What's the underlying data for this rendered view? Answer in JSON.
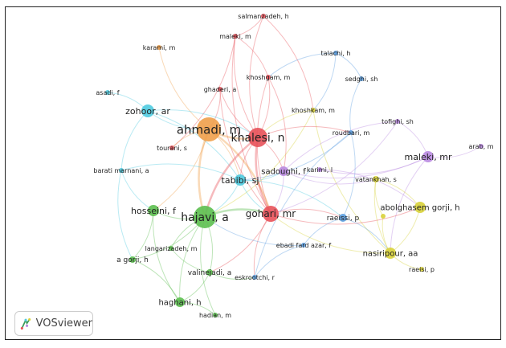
{
  "clusters": {
    "red": "#e8525a",
    "green": "#5cbf4f",
    "cyan": "#4fcbe0",
    "orange": "#f0a04b",
    "purple": "#b98ae0",
    "yellow": "#d8d23a",
    "blue": "#5c9ee0"
  },
  "nodes": [
    {
      "id": "salmanzadeh",
      "label": "salmanzadeh, h",
      "cluster": "red"
    },
    {
      "id": "maleki_m",
      "label": "maleki, m",
      "cluster": "red"
    },
    {
      "id": "karami",
      "label": "karami, m",
      "cluster": "orange"
    },
    {
      "id": "talachi",
      "label": "talachi, h",
      "cluster": "blue"
    },
    {
      "id": "khoshgam",
      "label": "khoshgam, m",
      "cluster": "red"
    },
    {
      "id": "sedghi",
      "label": "sedghi, sh",
      "cluster": "blue"
    },
    {
      "id": "ghaderi",
      "label": "ghaderi, a",
      "cluster": "red"
    },
    {
      "id": "asadi",
      "label": "asadi, f",
      "cluster": "cyan"
    },
    {
      "id": "zohoor",
      "label": "zohoor, ar",
      "cluster": "cyan"
    },
    {
      "id": "khoshkam",
      "label": "khoshkam, m",
      "cluster": "yellow"
    },
    {
      "id": "tofighi",
      "label": "tofighi, sh",
      "cluster": "purple"
    },
    {
      "id": "ahmadi",
      "label": "ahmadi, m",
      "cluster": "orange"
    },
    {
      "id": "khalesi",
      "label": "khalesi, n",
      "cluster": "red"
    },
    {
      "id": "roudbari",
      "label": "roudbari, m",
      "cluster": "blue"
    },
    {
      "id": "maleki_mr",
      "label": "maleki, mr",
      "cluster": "purple"
    },
    {
      "id": "arab",
      "label": "arab, m",
      "cluster": "purple"
    },
    {
      "id": "tourani",
      "label": "tourani, s",
      "cluster": "red"
    },
    {
      "id": "barati",
      "label": "barati marnani, a",
      "cluster": "cyan"
    },
    {
      "id": "tabibi",
      "label": "tabibi, sj",
      "cluster": "cyan"
    },
    {
      "id": "sadoughi",
      "label": "sadoughi, f",
      "cluster": "purple"
    },
    {
      "id": "karimi",
      "label": "karimi, l",
      "cluster": "purple"
    },
    {
      "id": "vatankhah",
      "label": "vatankhah, s",
      "cluster": "yellow"
    },
    {
      "id": "hosseini",
      "label": "hosseini, f",
      "cluster": "green"
    },
    {
      "id": "hajavi",
      "label": "hajavi, a",
      "cluster": "green"
    },
    {
      "id": "gohari",
      "label": "gohari, mr",
      "cluster": "red"
    },
    {
      "id": "abolghasem",
      "label": "abolghasem gorji, h",
      "cluster": "yellow"
    },
    {
      "id": "raeissi",
      "label": "raeissi, p",
      "cluster": "blue"
    },
    {
      "id": "unlabeled_y",
      "label": "",
      "cluster": "yellow"
    },
    {
      "id": "langarizadeh",
      "label": "langarizadeh, m",
      "cluster": "green"
    },
    {
      "id": "ebadi",
      "label": "ebadi fard azar, f",
      "cluster": "blue"
    },
    {
      "id": "nasiripour",
      "label": "nasiripour, aa",
      "cluster": "yellow"
    },
    {
      "id": "agorji",
      "label": "a gorji, h",
      "cluster": "green"
    },
    {
      "id": "raeisi",
      "label": "raeisi, p",
      "cluster": "yellow"
    },
    {
      "id": "valinejadi",
      "label": "valinejadi, a",
      "cluster": "green"
    },
    {
      "id": "eskrootchi",
      "label": "eskrootchi, r",
      "cluster": "blue"
    },
    {
      "id": "haghani",
      "label": "haghani, h",
      "cluster": "green"
    },
    {
      "id": "hadian",
      "label": "hadian, m",
      "cluster": "green"
    }
  ],
  "links": [
    [
      "salmanzadeh",
      "maleki_m"
    ],
    [
      "salmanzadeh",
      "khalesi"
    ],
    [
      "salmanzadeh",
      "khoshkam"
    ],
    [
      "maleki_m",
      "khalesi"
    ],
    [
      "maleki_m",
      "tourani"
    ],
    [
      "maleki_m",
      "gohari"
    ],
    [
      "maleki_m",
      "khoshgam"
    ],
    [
      "karami",
      "ahmadi"
    ],
    [
      "talachi",
      "sedghi"
    ],
    [
      "talachi",
      "khoshgam"
    ],
    [
      "talachi",
      "khoshkam"
    ],
    [
      "sedghi",
      "roudbari"
    ],
    [
      "khoshgam",
      "khalesi"
    ],
    [
      "khoshgam",
      "gohari"
    ],
    [
      "khoshgam",
      "sadoughi"
    ],
    [
      "ghaderi",
      "khalesi"
    ],
    [
      "ghaderi",
      "ahmadi"
    ],
    [
      "ghaderi",
      "gohari"
    ],
    [
      "asadi",
      "zohoor"
    ],
    [
      "zohoor",
      "barati"
    ],
    [
      "zohoor",
      "tabibi"
    ],
    [
      "zohoor",
      "ahmadi"
    ],
    [
      "zohoor",
      "khalesi"
    ],
    [
      "khoshkam",
      "khalesi"
    ],
    [
      "khoshkam",
      "hajavi"
    ],
    [
      "khoshkam",
      "nasiripour"
    ],
    [
      "tofighi",
      "maleki_mr"
    ],
    [
      "tofighi",
      "sadoughi"
    ],
    [
      "tofighi",
      "gohari"
    ],
    [
      "ahmadi",
      "khalesi"
    ],
    [
      "ahmadi",
      "gohari"
    ],
    [
      "ahmadi",
      "hajavi"
    ],
    [
      "ahmadi",
      "tabibi"
    ],
    [
      "ahmadi",
      "tourani"
    ],
    [
      "ahmadi",
      "hosseini"
    ],
    [
      "khalesi",
      "gohari"
    ],
    [
      "khalesi",
      "sadoughi"
    ],
    [
      "khalesi",
      "tabibi"
    ],
    [
      "khalesi",
      "roudbari"
    ],
    [
      "khalesi",
      "hajavi"
    ],
    [
      "roudbari",
      "raeissi"
    ],
    [
      "roudbari",
      "eskrootchi"
    ],
    [
      "roudbari",
      "tabibi"
    ],
    [
      "maleki_mr",
      "arab"
    ],
    [
      "maleki_mr",
      "sadoughi"
    ],
    [
      "maleki_mr",
      "nasiripour"
    ],
    [
      "maleki_mr",
      "karimi"
    ],
    [
      "barati",
      "hosseini"
    ],
    [
      "barati",
      "tabibi"
    ],
    [
      "barati",
      "agorji"
    ],
    [
      "tabibi",
      "hajavi"
    ],
    [
      "tabibi",
      "gohari"
    ],
    [
      "tabibi",
      "raeissi"
    ],
    [
      "tabibi",
      "sadoughi"
    ],
    [
      "sadoughi",
      "gohari"
    ],
    [
      "sadoughi",
      "vatankhah"
    ],
    [
      "karimi",
      "abolghasem"
    ],
    [
      "vatankhah",
      "nasiripour"
    ],
    [
      "vatankhah",
      "abolghasem"
    ],
    [
      "hosseini",
      "hajavi"
    ],
    [
      "hosseini",
      "agorji"
    ],
    [
      "hosseini",
      "haghani"
    ],
    [
      "hajavi",
      "gohari"
    ],
    [
      "hajavi",
      "haghani"
    ],
    [
      "hajavi",
      "valinejadi"
    ],
    [
      "hajavi",
      "langarizadeh"
    ],
    [
      "hajavi",
      "agorji"
    ],
    [
      "hajavi",
      "hadian"
    ],
    [
      "gohari",
      "raeissi"
    ],
    [
      "gohari",
      "eskrootchi"
    ],
    [
      "gohari",
      "valinejadi"
    ],
    [
      "gohari",
      "abolghasem"
    ],
    [
      "abolghasem",
      "nasiripour"
    ],
    [
      "unlabeled_y",
      "nasiripour"
    ],
    [
      "unlabeled_y",
      "vatankhah"
    ],
    [
      "raeissi",
      "ebadi"
    ],
    [
      "raeissi",
      "nasiripour"
    ],
    [
      "ebadi",
      "eskrootchi"
    ],
    [
      "ebadi",
      "hajavi"
    ],
    [
      "nasiripour",
      "raeisi"
    ],
    [
      "nasiripour",
      "gohari"
    ],
    [
      "valinejadi",
      "eskrootchi"
    ],
    [
      "valinejadi",
      "haghani"
    ],
    [
      "haghani",
      "agorji"
    ],
    [
      "haghani",
      "hadian"
    ],
    [
      "langarizadeh",
      "valinejadi"
    ]
  ],
  "logo": {
    "text": "VOSviewer"
  }
}
